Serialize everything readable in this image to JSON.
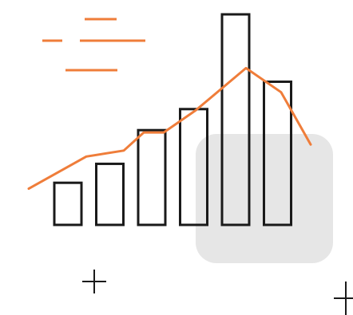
{
  "illustration": {
    "kind": "growth bar chart illustration",
    "bars": [
      0.2,
      0.29,
      0.45,
      0.55,
      1.0,
      0.68
    ],
    "trend": [
      0.18,
      0.34,
      0.37,
      0.46,
      0.46,
      0.57,
      0.78,
      0.66,
      0.4
    ],
    "decorations": [
      "dash-lines",
      "plus-marks",
      "highlight-panel"
    ]
  },
  "colors": {
    "background": "#ffffff",
    "bar_stroke": "#1a1a1a",
    "trend_line": "#ef7d3a",
    "highlight_panel": "#e6e6e6",
    "plus_mark": "#1a1a1a"
  }
}
